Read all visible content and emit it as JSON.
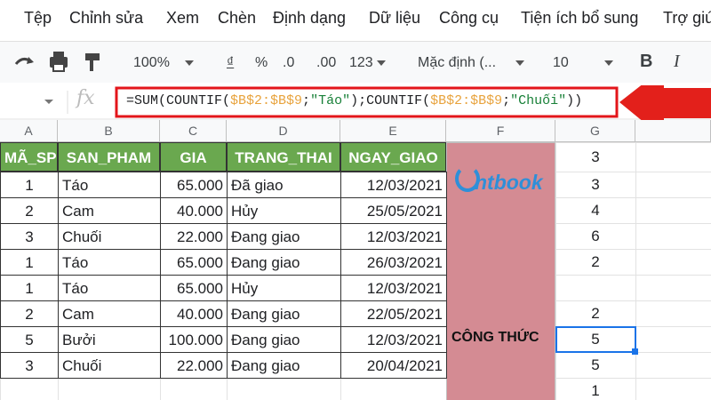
{
  "menu": [
    "Tệp",
    "Chỉnh sửa",
    "Xem",
    "Chèn",
    "Định dạng",
    "Dữ liệu",
    "Công cụ",
    "Tiện ích bổ sung",
    "Trợ giú"
  ],
  "toolbar": {
    "zoom": "100%",
    "currency": "₫",
    "percent": "%",
    "dec_less": ".0",
    "dec_more": ".00",
    "format": "123",
    "font": "Mặc định (...",
    "size": "10",
    "bold": "B",
    "italic": "I"
  },
  "formula_bar": {
    "fx": "fx",
    "formula": [
      {
        "text": "=SUM(COUNTIF(",
        "color": "#202124"
      },
      {
        "text": "$B$2:$B$9",
        "color": "#e8a33d"
      },
      {
        "text": ";",
        "color": "#202124"
      },
      {
        "text": "\"Táo\"",
        "color": "#188038"
      },
      {
        "text": ");COUNTIF(",
        "color": "#202124"
      },
      {
        "text": "$B$2:$B$9",
        "color": "#e8a33d"
      },
      {
        "text": ";",
        "color": "#202124"
      },
      {
        "text": "\"Chuối\"",
        "color": "#188038"
      },
      {
        "text": "))",
        "color": "#202124"
      }
    ]
  },
  "columns": [
    "A",
    "B",
    "C",
    "D",
    "E",
    "F",
    "G"
  ],
  "table": {
    "header": [
      "MÃ_SP",
      "SAN_PHAM",
      "GIA",
      "TRANG_THAI",
      "NGAY_GIAO"
    ],
    "rows": [
      [
        1,
        "Táo",
        "65.000",
        "Đã giao",
        "12/03/2021"
      ],
      [
        2,
        "Cam",
        "40.000",
        "Hủy",
        "25/05/2021"
      ],
      [
        3,
        "Chuối",
        "22.000",
        "Đang giao",
        "12/03/2021"
      ],
      [
        1,
        "Táo",
        "65.000",
        "Đang giao",
        "26/03/2021"
      ],
      [
        1,
        "Táo",
        "65.000",
        "Hủy",
        "12/03/2021"
      ],
      [
        2,
        "Cam",
        "40.000",
        "Đang giao",
        "22/05/2021"
      ],
      [
        5,
        "Bưởi",
        "100.000",
        "Đang giao",
        "12/03/2021"
      ],
      [
        3,
        "Chuối",
        "22.000",
        "Đang giao",
        "20/04/2021"
      ]
    ]
  },
  "side": {
    "logo": "ntbook",
    "label": "CÔNG THỨC"
  },
  "column_g": [
    3,
    3,
    4,
    6,
    2,
    null,
    2,
    5,
    5,
    1
  ]
}
